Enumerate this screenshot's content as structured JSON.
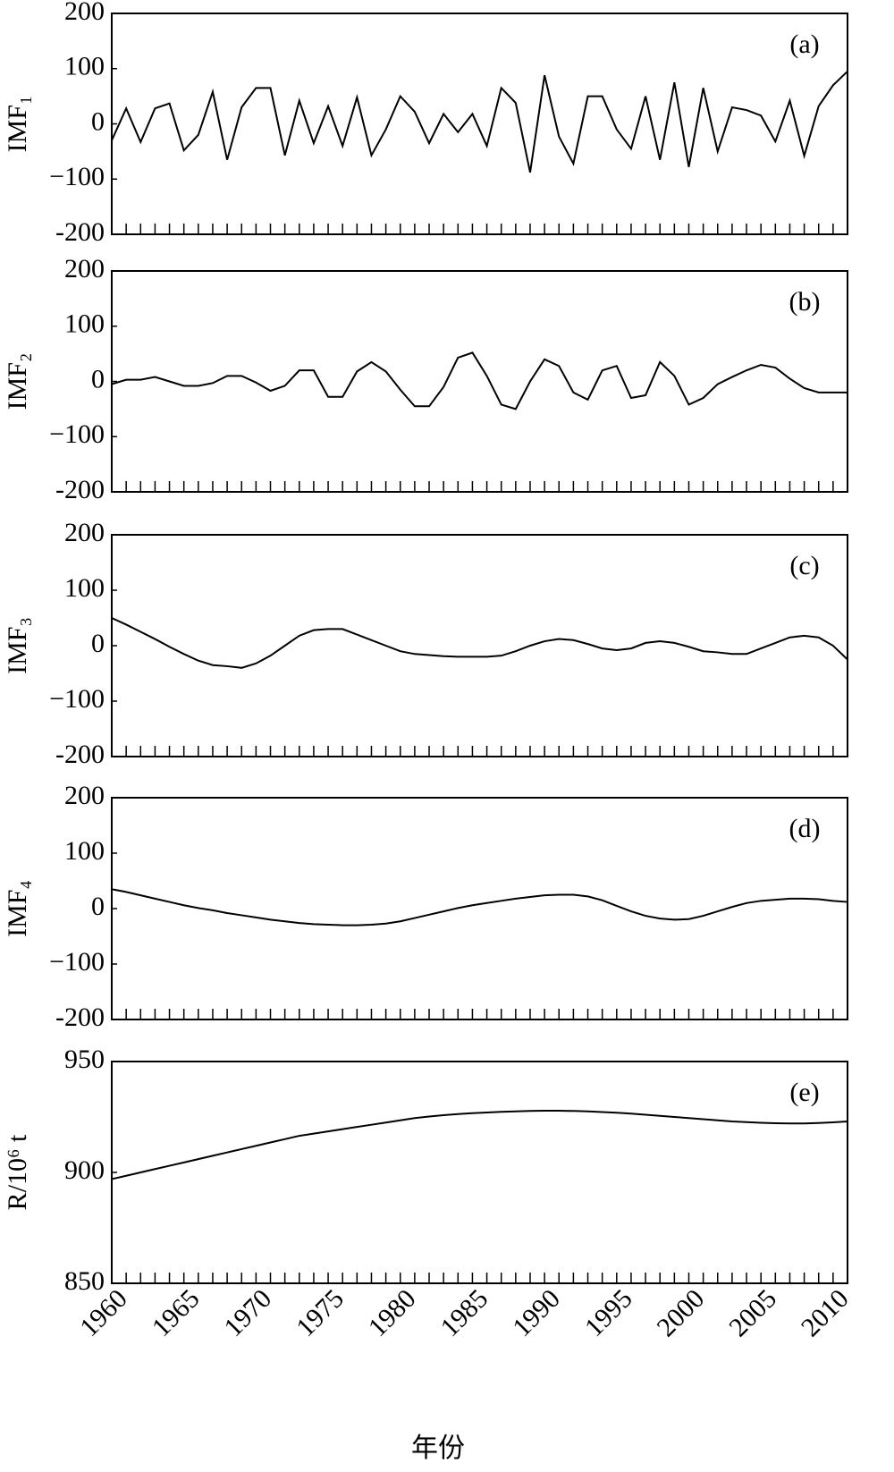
{
  "chart_data": [
    {
      "type": "line",
      "ylabel": "IMF₁",
      "annotation": "(a)",
      "x": [
        1960,
        1961,
        1962,
        1963,
        1964,
        1965,
        1966,
        1967,
        1968,
        1969,
        1970,
        1971,
        1972,
        1973,
        1974,
        1975,
        1976,
        1977,
        1978,
        1979,
        1980,
        1981,
        1982,
        1983,
        1984,
        1985,
        1986,
        1987,
        1988,
        1989,
        1990,
        1991,
        1992,
        1993,
        1994,
        1995,
        1996,
        1997,
        1998,
        1999,
        2000,
        2001,
        2002,
        2003,
        2004,
        2005,
        2006,
        2007,
        2008,
        2009,
        2010,
        2011
      ],
      "values": [
        -30,
        28,
        -33,
        28,
        37,
        -48,
        -20,
        58,
        -65,
        30,
        65,
        65,
        -57,
        42,
        -35,
        32,
        -40,
        48,
        -57,
        -10,
        50,
        22,
        -35,
        18,
        -15,
        18,
        -40,
        65,
        38,
        -88,
        88,
        -23,
        -72,
        50,
        50,
        -10,
        -45,
        50,
        -65,
        75,
        -78,
        65,
        -50,
        30,
        25,
        15,
        -32,
        42,
        -58,
        32,
        70,
        95
      ],
      "color": "#000000",
      "xlim": [
        1960,
        2011
      ],
      "ylim": [
        -200,
        200
      ],
      "yticks": [
        -200,
        {
          "value": -100,
          "label": "−100"
        },
        0,
        100,
        200
      ]
    },
    {
      "type": "line",
      "ylabel": "IMF₂",
      "annotation": "(b)",
      "x": [
        1960,
        1961,
        1962,
        1963,
        1964,
        1965,
        1966,
        1967,
        1968,
        1969,
        1970,
        1971,
        1972,
        1973,
        1974,
        1975,
        1976,
        1977,
        1978,
        1979,
        1980,
        1981,
        1982,
        1983,
        1984,
        1985,
        1986,
        1987,
        1988,
        1989,
        1990,
        1991,
        1992,
        1993,
        1994,
        1995,
        1996,
        1997,
        1998,
        1999,
        2000,
        2001,
        2002,
        2003,
        2004,
        2005,
        2006,
        2007,
        2008,
        2009,
        2010,
        2011
      ],
      "values": [
        -5,
        3,
        3,
        8,
        0,
        -8,
        -8,
        -3,
        10,
        10,
        -2,
        -17,
        -8,
        20,
        20,
        -28,
        -28,
        18,
        35,
        18,
        -15,
        -45,
        -45,
        -10,
        43,
        52,
        10,
        -42,
        -50,
        0,
        40,
        28,
        -20,
        -33,
        20,
        28,
        -30,
        -25,
        35,
        10,
        -42,
        -30,
        -5,
        8,
        20,
        30,
        25,
        5,
        -12,
        -20,
        -20,
        -20
      ],
      "color": "#000000",
      "xlim": [
        1960,
        2011
      ],
      "ylim": [
        -200,
        200
      ],
      "yticks": [
        -200,
        {
          "value": -100,
          "label": "−100"
        },
        0,
        100,
        200
      ]
    },
    {
      "type": "line",
      "ylabel": "IMF₃",
      "annotation": "(c)",
      "x": [
        1960,
        1961,
        1962,
        1963,
        1964,
        1965,
        1966,
        1967,
        1968,
        1969,
        1970,
        1971,
        1972,
        1973,
        1974,
        1975,
        1976,
        1977,
        1978,
        1979,
        1980,
        1981,
        1982,
        1983,
        1984,
        1985,
        1986,
        1987,
        1988,
        1989,
        1990,
        1991,
        1992,
        1993,
        1994,
        1995,
        1996,
        1997,
        1998,
        1999,
        2000,
        2001,
        2002,
        2003,
        2004,
        2005,
        2006,
        2007,
        2008,
        2009,
        2010,
        2011
      ],
      "values": [
        50,
        38,
        25,
        12,
        -2,
        -15,
        -27,
        -35,
        -37,
        -40,
        -32,
        -18,
        0,
        18,
        28,
        30,
        30,
        20,
        10,
        0,
        -10,
        -15,
        -17,
        -19,
        -20,
        -20,
        -20,
        -18,
        -10,
        0,
        8,
        12,
        10,
        3,
        -5,
        -8,
        -5,
        5,
        8,
        5,
        -2,
        -10,
        -12,
        -15,
        -15,
        -5,
        5,
        15,
        18,
        15,
        0,
        -25
      ],
      "color": "#000000",
      "xlim": [
        1960,
        2011
      ],
      "ylim": [
        -200,
        200
      ],
      "yticks": [
        -200,
        {
          "value": -100,
          "label": "−100"
        },
        0,
        100,
        200
      ]
    },
    {
      "type": "line",
      "ylabel": "IMF₄",
      "annotation": "(d)",
      "x": [
        1960,
        1961,
        1962,
        1963,
        1964,
        1965,
        1966,
        1967,
        1968,
        1969,
        1970,
        1971,
        1972,
        1973,
        1974,
        1975,
        1976,
        1977,
        1978,
        1979,
        1980,
        1981,
        1982,
        1983,
        1984,
        1985,
        1986,
        1987,
        1988,
        1989,
        1990,
        1991,
        1992,
        1993,
        1994,
        1995,
        1996,
        1997,
        1998,
        1999,
        2000,
        2001,
        2002,
        2003,
        2004,
        2005,
        2006,
        2007,
        2008,
        2009,
        2010,
        2011
      ],
      "values": [
        35,
        30,
        24,
        18,
        12,
        6,
        1,
        -3,
        -8,
        -12,
        -16,
        -20,
        -23,
        -26,
        -28,
        -29,
        -30,
        -30,
        -29,
        -27,
        -23,
        -17,
        -11,
        -5,
        1,
        6,
        10,
        14,
        18,
        21,
        24,
        25,
        25,
        22,
        15,
        5,
        -5,
        -13,
        -18,
        -20,
        -19,
        -13,
        -5,
        3,
        10,
        14,
        16,
        18,
        18,
        17,
        14,
        12
      ],
      "color": "#000000",
      "xlim": [
        1960,
        2011
      ],
      "ylim": [
        -200,
        200
      ],
      "yticks": [
        -200,
        {
          "value": -100,
          "label": "−100"
        },
        0,
        100,
        200
      ]
    },
    {
      "type": "line",
      "ylabel": "R/10⁶ t",
      "annotation": "(e)",
      "xlabel": "年份",
      "x": [
        1960,
        1961,
        1962,
        1963,
        1964,
        1965,
        1966,
        1967,
        1968,
        1969,
        1970,
        1971,
        1972,
        1973,
        1974,
        1975,
        1976,
        1977,
        1978,
        1979,
        1980,
        1981,
        1982,
        1983,
        1984,
        1985,
        1986,
        1987,
        1988,
        1989,
        1990,
        1991,
        1992,
        1993,
        1994,
        1995,
        1996,
        1997,
        1998,
        1999,
        2000,
        2001,
        2002,
        2003,
        2004,
        2005,
        2006,
        2007,
        2008,
        2009,
        2010,
        2011
      ],
      "values": [
        897,
        898.5,
        900,
        901.5,
        903,
        904.5,
        906,
        907.5,
        909,
        910.5,
        912,
        913.5,
        915,
        916.5,
        917.5,
        918.5,
        919.5,
        920.5,
        921.5,
        922.5,
        923.5,
        924.5,
        925.2,
        925.8,
        926.3,
        926.7,
        927,
        927.3,
        927.5,
        927.7,
        927.8,
        927.8,
        927.7,
        927.5,
        927.2,
        926.9,
        926.5,
        926,
        925.5,
        925,
        924.5,
        924,
        923.5,
        923,
        922.7,
        922.4,
        922.2,
        922.1,
        922.1,
        922.3,
        922.6,
        923
      ],
      "color": "#000000",
      "xlim": [
        1960,
        2011
      ],
      "ylim": [
        850,
        950
      ],
      "yticks": [
        850,
        900,
        950
      ],
      "xticks": [
        1960,
        1965,
        1970,
        1975,
        1980,
        1985,
        1990,
        1995,
        2000,
        2005,
        2010
      ]
    }
  ]
}
